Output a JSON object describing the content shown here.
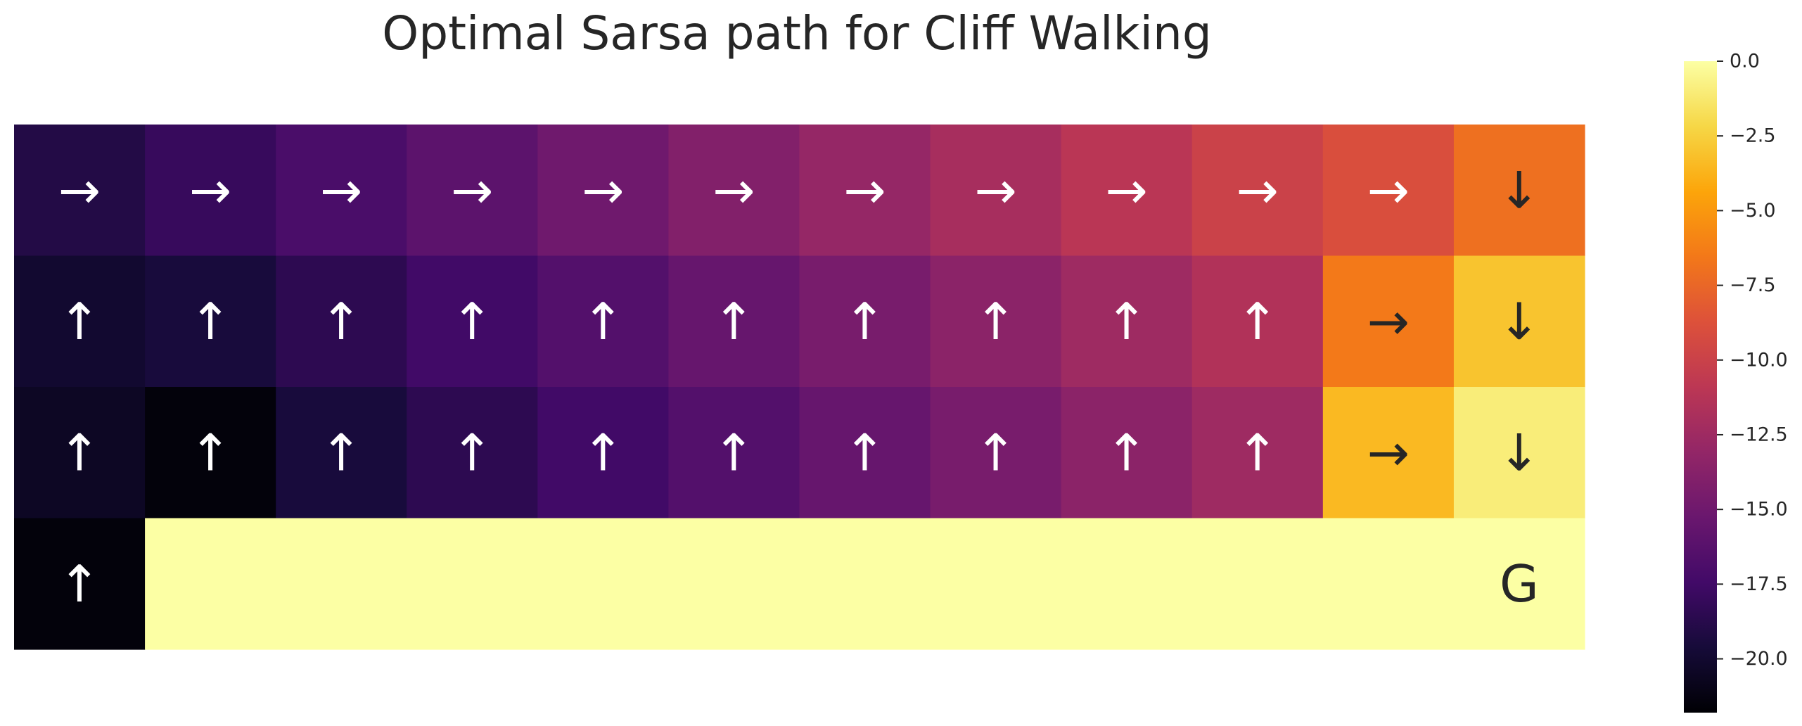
{
  "chart_data": {
    "type": "heatmap",
    "title": "Optimal Sarsa path for Cliff Walking",
    "xlabel": "",
    "ylabel": "",
    "rows": 4,
    "cols": 12,
    "colormap": "inferno",
    "vmin": -21.8,
    "vmax": 0.0,
    "values": [
      [
        -19.0,
        -18.0,
        -17.0,
        -16.0,
        -15.0,
        -14.0,
        -13.0,
        -12.0,
        -11.0,
        -10.0,
        -9.0,
        -7.0
      ],
      [
        -20.0,
        -19.5,
        -18.5,
        -17.5,
        -16.5,
        -15.5,
        -14.5,
        -13.5,
        -12.5,
        -11.5,
        -6.5,
        -3.0
      ],
      [
        -20.5,
        -21.5,
        -19.5,
        -18.5,
        -17.5,
        -16.5,
        -15.5,
        -14.5,
        -13.5,
        -12.5,
        -3.5,
        -1.0
      ],
      [
        -21.5,
        0,
        0,
        0,
        0,
        0,
        0,
        0,
        0,
        0,
        0,
        0
      ]
    ],
    "labels": [
      [
        "→",
        "→",
        "→",
        "→",
        "→",
        "→",
        "→",
        "→",
        "→",
        "→",
        "→",
        "↓"
      ],
      [
        "↑",
        "↑",
        "↑",
        "↑",
        "↑",
        "↑",
        "↑",
        "↑",
        "↑",
        "↑",
        "→",
        "↓"
      ],
      [
        "↑",
        "↑",
        "↑",
        "↑",
        "↑",
        "↑",
        "↑",
        "↑",
        "↑",
        "↑",
        "→",
        "↓"
      ],
      [
        "↑",
        "",
        "",
        "",
        "",
        "",
        "",
        "",
        "",
        "",
        "",
        "G"
      ]
    ],
    "colorbar": {
      "ticks": [
        0.0,
        -2.5,
        -5.0,
        -7.5,
        -10.0,
        -12.5,
        -15.0,
        -17.5,
        -20.0
      ],
      "tick_labels": [
        "0.0",
        "−2.5",
        "−5.0",
        "−7.5",
        "−10.0",
        "−12.5",
        "−15.0",
        "−17.5",
        "−20.0"
      ]
    }
  }
}
